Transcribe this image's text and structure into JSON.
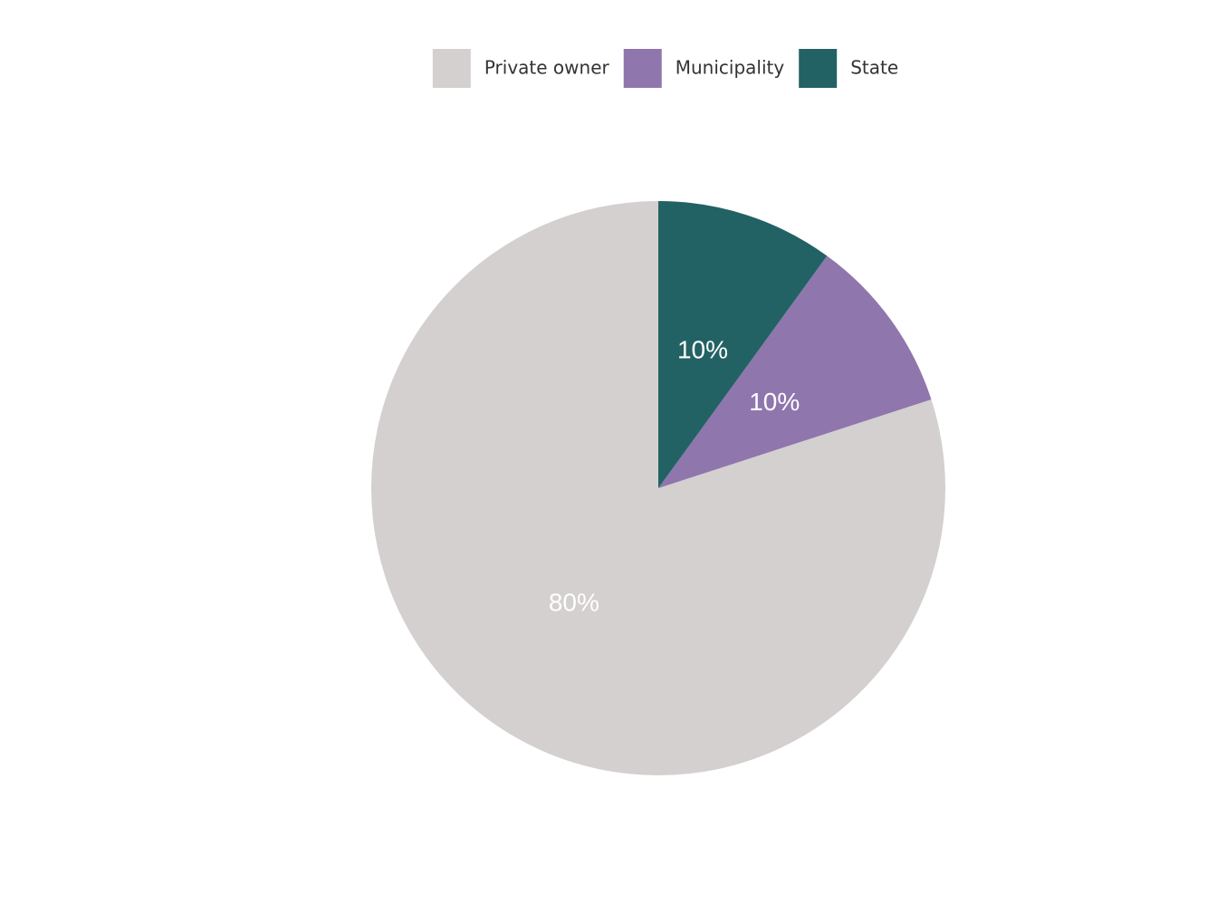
{
  "chart_data": {
    "type": "pie",
    "categories": [
      "Private owner",
      "Municipality",
      "State"
    ],
    "values": [
      80,
      10,
      10
    ],
    "value_labels": [
      "80%",
      "10%",
      "10%"
    ],
    "colors": [
      "#d3d0cf",
      "#8f76ad",
      "#236264"
    ],
    "legend": "top"
  }
}
